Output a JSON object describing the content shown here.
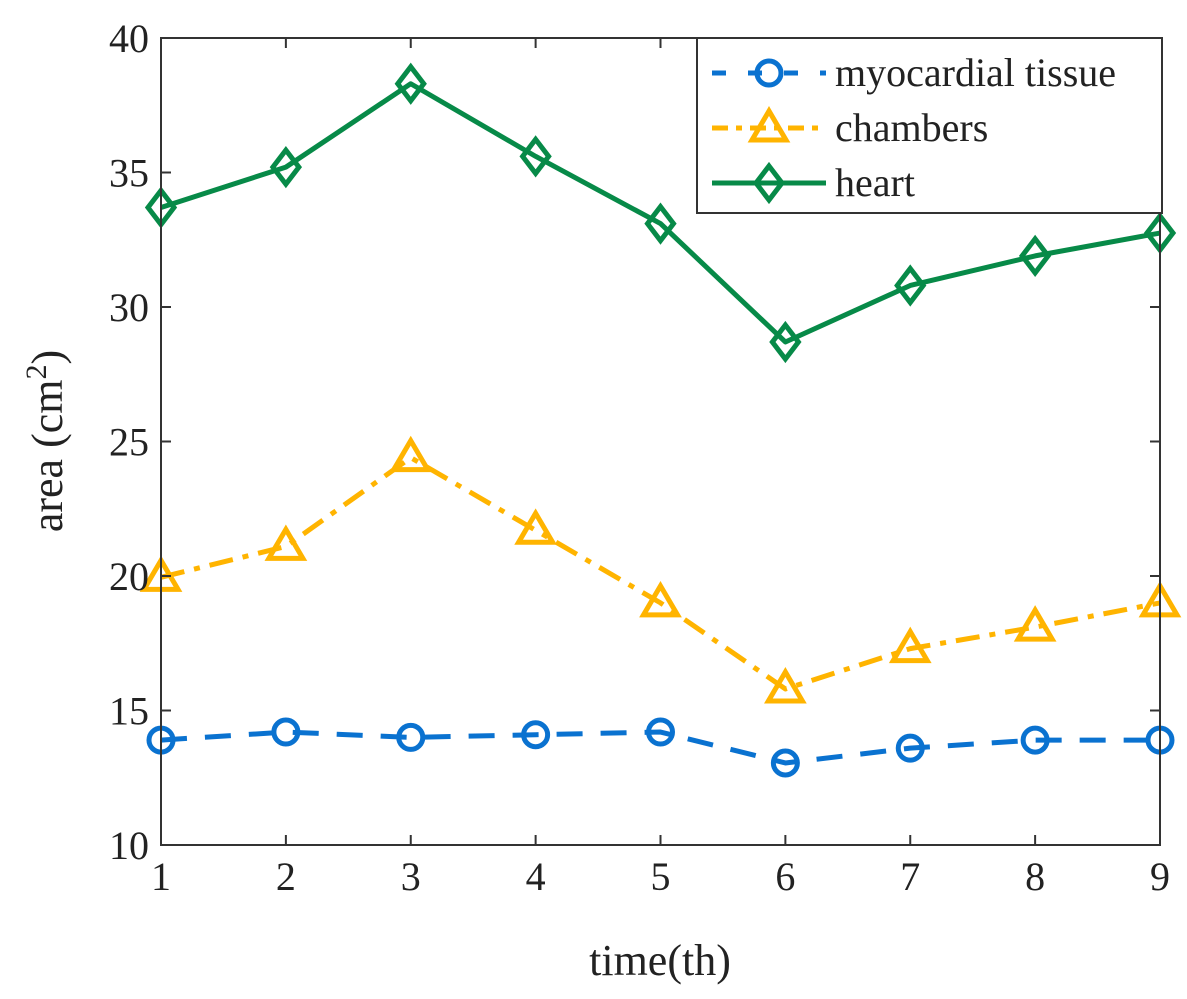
{
  "chart_data": {
    "type": "line",
    "title": "",
    "xlabel": "time(th)",
    "ylabel": "area (cm",
    "ylabel_superscript": "2",
    "ylabel_suffix": ")",
    "x": [
      1,
      2,
      3,
      4,
      5,
      6,
      7,
      8,
      9
    ],
    "xlim": [
      1,
      9
    ],
    "ylim": [
      10,
      40
    ],
    "xticks": [
      "1",
      "2",
      "3",
      "4",
      "5",
      "6",
      "7",
      "8",
      "9"
    ],
    "yticks": [
      "10",
      "15",
      "20",
      "25",
      "30",
      "35",
      "40"
    ],
    "grid": false,
    "legend_position": "top-right",
    "series": [
      {
        "name": "myocardial tissue",
        "color": "#0a72d0",
        "marker": "circle",
        "dash": "dashed",
        "values": [
          13.9,
          14.2,
          14.0,
          14.1,
          14.2,
          13.05,
          13.6,
          13.9,
          13.9
        ]
      },
      {
        "name": "chambers",
        "color": "#ffb400",
        "marker": "triangle",
        "dash": "dashdot",
        "values": [
          19.95,
          21.1,
          24.4,
          21.7,
          19.0,
          15.8,
          17.3,
          18.1,
          19.0
        ]
      },
      {
        "name": "heart",
        "color": "#078a48",
        "marker": "diamond",
        "dash": "solid",
        "values": [
          33.7,
          35.2,
          38.3,
          35.6,
          33.1,
          28.7,
          30.8,
          31.9,
          32.75
        ]
      }
    ]
  }
}
